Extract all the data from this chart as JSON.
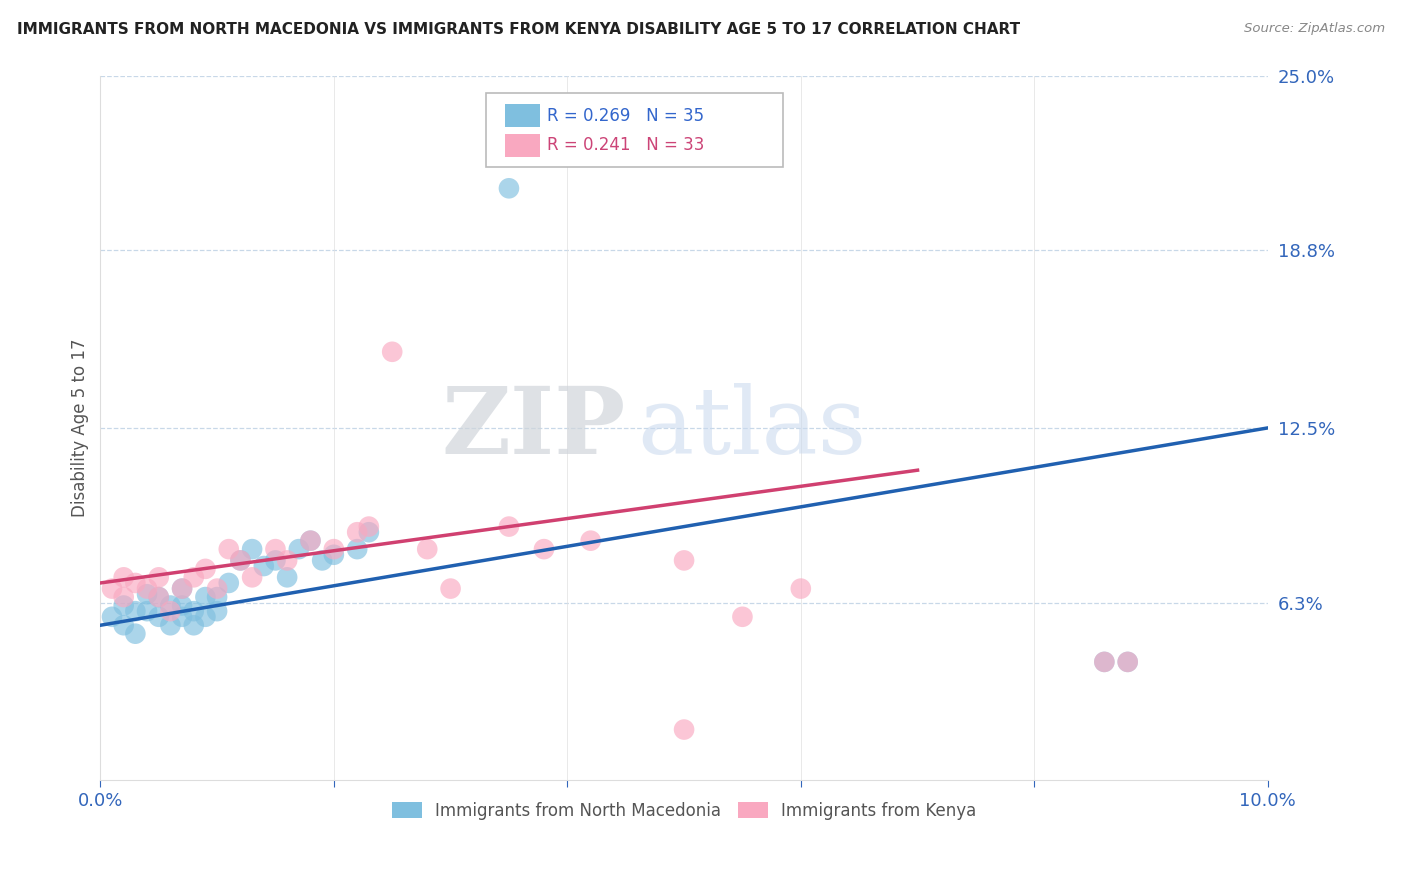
{
  "title": "IMMIGRANTS FROM NORTH MACEDONIA VS IMMIGRANTS FROM KENYA DISABILITY AGE 5 TO 17 CORRELATION CHART",
  "source": "Source: ZipAtlas.com",
  "ylabel": "Disability Age 5 to 17",
  "xlim": [
    0.0,
    0.1
  ],
  "ylim": [
    0.0,
    0.25
  ],
  "xticks": [
    0.0,
    0.02,
    0.04,
    0.06,
    0.08,
    0.1
  ],
  "xticklabels": [
    "0.0%",
    "",
    "",
    "",
    "",
    "10.0%"
  ],
  "right_yticks": [
    0.0,
    0.063,
    0.125,
    0.188,
    0.25
  ],
  "right_yticklabels": [
    "",
    "6.3%",
    "12.5%",
    "18.8%",
    "25.0%"
  ],
  "blue_label": "Immigrants from North Macedonia",
  "pink_label": "Immigrants from Kenya",
  "blue_R": "0.269",
  "blue_N": "35",
  "pink_R": "0.241",
  "pink_N": "33",
  "blue_color": "#7fbfdf",
  "pink_color": "#f9a8c0",
  "blue_line_color": "#2060b0",
  "pink_line_color": "#d04070",
  "watermark_zip": "ZIP",
  "watermark_atlas": "atlas",
  "blue_x": [
    0.001,
    0.002,
    0.002,
    0.003,
    0.003,
    0.004,
    0.004,
    0.005,
    0.005,
    0.006,
    0.006,
    0.007,
    0.007,
    0.007,
    0.008,
    0.008,
    0.009,
    0.009,
    0.01,
    0.01,
    0.011,
    0.012,
    0.013,
    0.014,
    0.015,
    0.016,
    0.017,
    0.018,
    0.019,
    0.02,
    0.022,
    0.023,
    0.035,
    0.086,
    0.088
  ],
  "blue_y": [
    0.058,
    0.055,
    0.062,
    0.052,
    0.06,
    0.06,
    0.066,
    0.058,
    0.065,
    0.055,
    0.062,
    0.058,
    0.062,
    0.068,
    0.055,
    0.06,
    0.058,
    0.065,
    0.06,
    0.065,
    0.07,
    0.078,
    0.082,
    0.076,
    0.078,
    0.072,
    0.082,
    0.085,
    0.078,
    0.08,
    0.082,
    0.088,
    0.21,
    0.042,
    0.042
  ],
  "pink_x": [
    0.001,
    0.002,
    0.002,
    0.003,
    0.004,
    0.005,
    0.005,
    0.006,
    0.007,
    0.008,
    0.009,
    0.01,
    0.011,
    0.012,
    0.013,
    0.015,
    0.016,
    0.018,
    0.02,
    0.022,
    0.023,
    0.025,
    0.028,
    0.03,
    0.035,
    0.038,
    0.042,
    0.05,
    0.055,
    0.06,
    0.086,
    0.088,
    0.05
  ],
  "pink_y": [
    0.068,
    0.065,
    0.072,
    0.07,
    0.068,
    0.065,
    0.072,
    0.06,
    0.068,
    0.072,
    0.075,
    0.068,
    0.082,
    0.078,
    0.072,
    0.082,
    0.078,
    0.085,
    0.082,
    0.088,
    0.09,
    0.152,
    0.082,
    0.068,
    0.09,
    0.082,
    0.085,
    0.078,
    0.058,
    0.068,
    0.042,
    0.042,
    0.018
  ]
}
